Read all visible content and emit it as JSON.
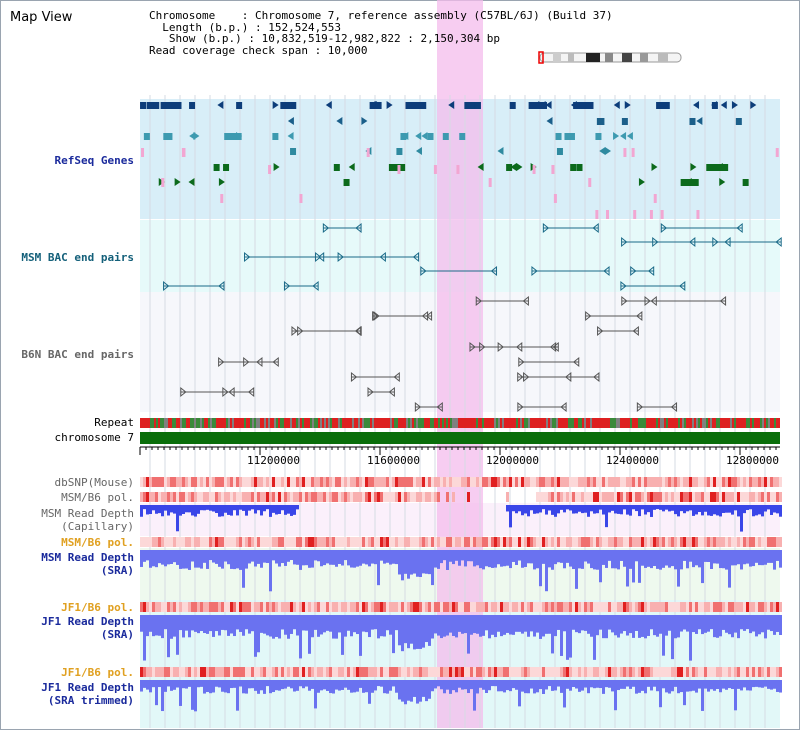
{
  "header": {
    "title": "Map View",
    "info_lines": [
      "Chromosome    : Chromosome 7, reference assembly (C57BL/6J) (Build 37)",
      "  Length (b.p.) : 152,524,553",
      "   Show (b.p.) : 10,832,519-12,982,822 : 2,150,304 bp",
      "Read coverage check span : 10,000"
    ]
  },
  "tracks": {
    "refseq": "RefSeq Genes",
    "msm_bac": "MSM BAC end pairs",
    "b6n_bac": "B6N BAC end pairs",
    "repeat": "Repeat",
    "chromosome": "chromosome 7",
    "dbsnp": "dbSNP(Mouse)",
    "msm_b6_pol_1": "MSM/B6 pol.",
    "msm_read_cap_1": "MSM Read Depth",
    "msm_read_cap_2": "(Capillary)",
    "msm_b6_pol_2": "MSM/B6 pol.",
    "msm_read_sra_1": "MSM Read Depth",
    "msm_read_sra_2": "(SRA)",
    "jf1_b6_pol_1": "JF1/B6 pol.",
    "jf1_read_sra_1": "JF1 Read Depth",
    "jf1_read_sra_2": "(SRA)",
    "jf1_b6_pol_2": "JF1/B6 pol.",
    "jf1_read_trim_1": "JF1 Read Depth",
    "jf1_read_trim_2": "(SRA trimmed)"
  },
  "ruler": {
    "ticks": [
      "11200000",
      "11600000",
      "12000000",
      "12400000",
      "12800000"
    ]
  },
  "colors": {
    "refseq_bg": "#d8eef8",
    "bac_bg": "#e8fafa",
    "highlight": "#f6c6ee",
    "chromosome": "#0a6e0a",
    "depth": "#5a64f0"
  }
}
